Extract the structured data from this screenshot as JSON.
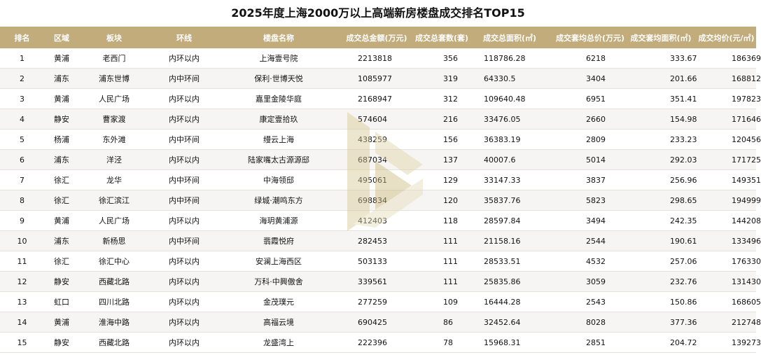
{
  "title": "2025年度上海2000万以上高端新房楼盘成交排名TOP15",
  "headers": [
    "排名",
    "区域",
    "板块",
    "环线",
    "楼盘名称",
    "成交总金额(万元)",
    "成交总套数(套)",
    "成交总面积(㎡)",
    "成交套均总价(万元)",
    "成交套均面积(㎡)",
    "成交均价(元/㎡)"
  ],
  "rows": [
    [
      "1",
      "黄浦",
      "老西门",
      "内环以内",
      "上海壹号院",
      "2213818",
      "356",
      "118786.28",
      "6218",
      "333.67",
      "186369"
    ],
    [
      "2",
      "浦东",
      "浦东世博",
      "内中环间",
      "保利·世博天悦",
      "1085977",
      "319",
      "64330.5",
      "3404",
      "201.66",
      "168812"
    ],
    [
      "3",
      "黄浦",
      "人民广场",
      "内环以内",
      "嘉里金陵华庭",
      "2168947",
      "312",
      "109640.48",
      "6951",
      "351.41",
      "197823"
    ],
    [
      "4",
      "静安",
      "曹家渡",
      "内环以内",
      "康定壹拾玖",
      "574604",
      "216",
      "33476.05",
      "2660",
      "154.98",
      "171646"
    ],
    [
      "5",
      "杨浦",
      "东外滩",
      "内中环间",
      "缦云上海",
      "438259",
      "156",
      "36383.19",
      "2809",
      "233.23",
      "120456"
    ],
    [
      "6",
      "浦东",
      "洋泾",
      "内环以内",
      "陆家嘴太古源源邸",
      "687034",
      "137",
      "40007.6",
      "5014",
      "292.03",
      "171725"
    ],
    [
      "7",
      "徐汇",
      "龙华",
      "内中环间",
      "中海领邸",
      "495061",
      "129",
      "33147.33",
      "3837",
      "256.96",
      "149351"
    ],
    [
      "8",
      "徐汇",
      "徐汇滨江",
      "内中环间",
      "绿城·潮鸣东方",
      "698834",
      "120",
      "35837.76",
      "5823",
      "298.65",
      "194999"
    ],
    [
      "9",
      "黄浦",
      "人民广场",
      "内环以内",
      "海玥黄浦源",
      "412403",
      "118",
      "28597.84",
      "3494",
      "242.35",
      "144208"
    ],
    [
      "10",
      "浦东",
      "新杨思",
      "内中环间",
      "翡霞悦府",
      "282453",
      "111",
      "21158.16",
      "2544",
      "190.61",
      "133496"
    ],
    [
      "11",
      "徐汇",
      "徐汇中心",
      "内环以内",
      "安澜上海西区",
      "503133",
      "111",
      "28533.51",
      "4532",
      "257.06",
      "176330"
    ],
    [
      "12",
      "静安",
      "西藏北路",
      "内环以内",
      "万科·中興傲舍",
      "339561",
      "111",
      "25835.86",
      "3059",
      "232.76",
      "131430"
    ],
    [
      "13",
      "虹口",
      "四川北路",
      "内环以内",
      "金茂璞元",
      "277259",
      "109",
      "16444.28",
      "2543",
      "150.86",
      "168605"
    ],
    [
      "14",
      "黄浦",
      "淮海中路",
      "内环以内",
      "高福云境",
      "690425",
      "86",
      "32452.64",
      "8028",
      "377.36",
      "212748"
    ],
    [
      "15",
      "静安",
      "西藏北路",
      "内环以内",
      "龙盛湾上",
      "222396",
      "78",
      "15968.31",
      "2851",
      "204.72",
      "139273"
    ]
  ],
  "colors": {
    "header_bg": "#c2ac7c",
    "watermark": "#d8c894"
  },
  "watermark_icon": "gold-s-logo"
}
